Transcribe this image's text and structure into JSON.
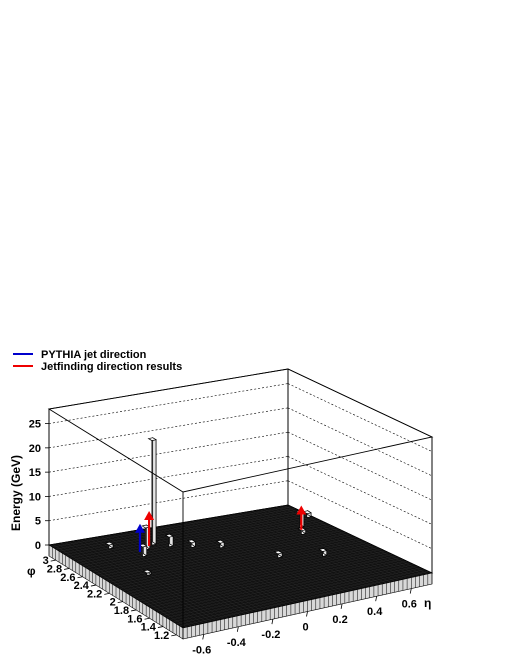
{
  "chart_data": {
    "type": "bar",
    "style": "3d-lego",
    "zlabel": "Energy (GeV)",
    "xlabel": "η",
    "ylabel": "φ",
    "x_ticks": [
      "-0.6",
      "-0.4",
      "-0.2",
      "0",
      "0.2",
      "0.4",
      "0.6"
    ],
    "y_ticks": [
      "1.2",
      "1.4",
      "1.6",
      "1.8",
      "2",
      "2.2",
      "2.4",
      "2.6",
      "2.8",
      "3"
    ],
    "z_ticks": [
      "0",
      "5",
      "10",
      "15",
      "20",
      "25"
    ],
    "xlim": [
      -0.72,
      0.72
    ],
    "ylim": [
      1.1,
      3.1
    ],
    "zlim": [
      0,
      28
    ],
    "grid": true,
    "legend_position": "top-left",
    "legend": [
      {
        "label": "PYTHIA jet direction",
        "color": "#0000cc"
      },
      {
        "label": "Jetfinding direction results",
        "color": "#ee0000"
      }
    ],
    "towers": [
      {
        "eta": -0.27,
        "phi": 2.72,
        "energy": 21.5
      },
      {
        "eta": -0.33,
        "phi": 2.66,
        "energy": 4.5
      },
      {
        "eta": -0.21,
        "phi": 2.62,
        "energy": 2.0
      },
      {
        "eta": -0.39,
        "phi": 2.55,
        "energy": 2.0
      },
      {
        "eta": -0.12,
        "phi": 2.52,
        "energy": 1.0
      },
      {
        "eta": -0.48,
        "phi": 2.82,
        "energy": 0.8
      },
      {
        "eta": 0.0,
        "phi": 2.4,
        "energy": 1.0
      },
      {
        "eta": 0.48,
        "phi": 2.45,
        "energy": 3.0
      },
      {
        "eta": 0.44,
        "phi": 2.32,
        "energy": 0.8
      },
      {
        "eta": 0.18,
        "phi": 2.0,
        "energy": 0.8
      },
      {
        "eta": 0.38,
        "phi": 1.85,
        "energy": 1.0
      },
      {
        "eta": -0.5,
        "phi": 2.2,
        "energy": 0.5
      },
      {
        "eta": 0.58,
        "phi": 2.6,
        "energy": 0.8
      }
    ],
    "pythia_jets": [
      {
        "eta": -0.38,
        "phi": 2.62,
        "energy": 5.8
      }
    ],
    "jetfinding_jets": [
      {
        "eta": -0.3,
        "phi": 2.69,
        "energy": 7.2
      },
      {
        "eta": 0.46,
        "phi": 2.38,
        "energy": 5.0
      }
    ]
  }
}
